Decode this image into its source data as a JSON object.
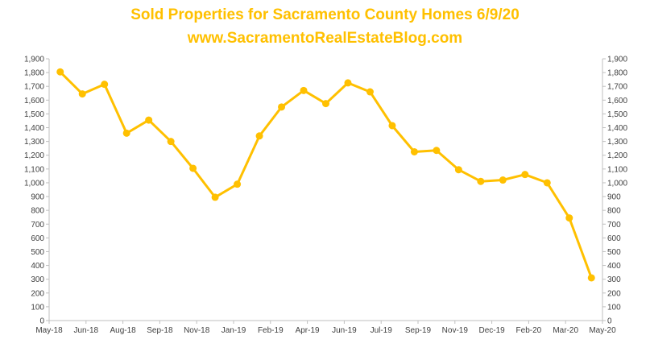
{
  "chart_data": {
    "type": "line",
    "title": "Sold Properties for Sacramento County Homes 6/9/20",
    "subtitle": "www.SacramentoRealEstateBlog.com",
    "xlabel": "",
    "ylabel": "",
    "ylim": [
      0,
      1900
    ],
    "y_ticks": [
      0,
      100,
      200,
      300,
      400,
      500,
      600,
      700,
      800,
      900,
      1000,
      1100,
      1200,
      1300,
      1400,
      1500,
      1600,
      1700,
      1800,
      1900
    ],
    "y_tick_labels": [
      "0",
      "100",
      "200",
      "300",
      "400",
      "500",
      "600",
      "700",
      "800",
      "900",
      "1,000",
      "1,100",
      "1,200",
      "1,300",
      "1,400",
      "1,500",
      "1,600",
      "1,700",
      "1,800",
      "1,900"
    ],
    "x_tick_labels": [
      "May-18",
      "Jun-18",
      "Aug-18",
      "Sep-18",
      "Nov-18",
      "Jan-19",
      "Feb-19",
      "Apr-19",
      "Jun-19",
      "Jul-19",
      "Sep-19",
      "Nov-19",
      "Dec-19",
      "Feb-20",
      "Mar-20",
      "May-20"
    ],
    "x": [
      "May-18",
      "Jun-18",
      "Jul-18",
      "Aug-18",
      "Sep-18",
      "Oct-18",
      "Nov-18",
      "Dec-18",
      "Jan-19",
      "Feb-19",
      "Mar-19",
      "Apr-19",
      "May-19",
      "Jun-19",
      "Jul-19",
      "Aug-19",
      "Sep-19",
      "Oct-19",
      "Nov-19",
      "Dec-19",
      "Jan-20",
      "Feb-20",
      "Mar-20",
      "Apr-20",
      "May-20"
    ],
    "series": [
      {
        "values": [
          1805,
          1645,
          1715,
          1360,
          1455,
          1300,
          1105,
          895,
          990,
          1340,
          1550,
          1670,
          1575,
          1725,
          1660,
          1415,
          1225,
          1235,
          1095,
          1010,
          1020,
          1060,
          1000,
          745,
          310
        ],
        "color": "#FFC000"
      }
    ],
    "grid": false,
    "secondary_y_axis": true
  }
}
